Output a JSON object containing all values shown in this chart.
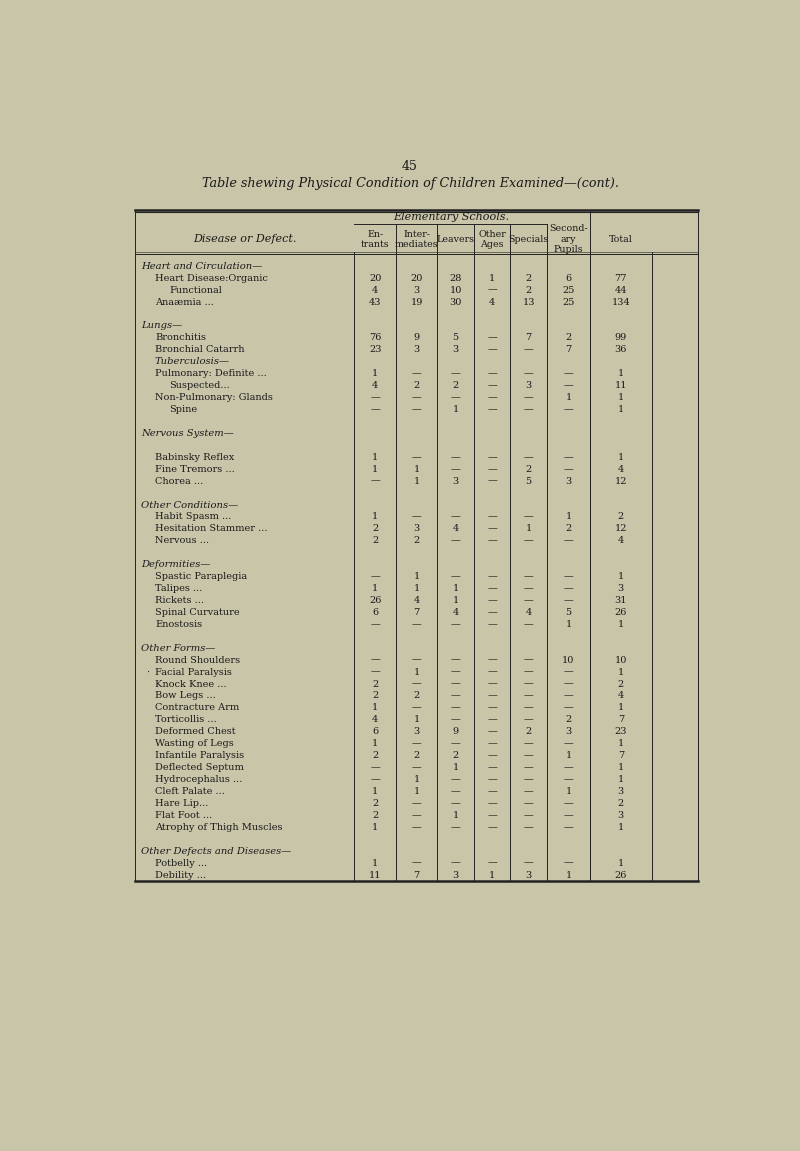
{
  "page_number": "45",
  "title": "Table shewing Physical Condition of Children Examined—(cont).",
  "header_group": "Elementary Schools.",
  "col_headers": [
    "En-\ntrants",
    "Inter-\nmediates",
    "Leavers",
    "Other\nAges",
    "Specials",
    "Second-\nary\nPupils",
    "Total"
  ],
  "disease_label": "Disease or Defect.",
  "bg_color": "#c9c5a9",
  "text_color": "#1a1a1a",
  "rows": [
    {
      "label": "Heart and Circulation—",
      "section": true,
      "indent": 0,
      "vals": [
        "",
        "",
        "",
        "",
        "",
        "",
        ""
      ]
    },
    {
      "label": "Heart Disease:Organic",
      "section": false,
      "indent": 1,
      "dots": "... ...",
      "vals": [
        "20",
        "20",
        "28",
        "1",
        "2",
        "6",
        "77"
      ]
    },
    {
      "label": "Functional",
      "section": false,
      "indent": 2,
      "dots": "... ...",
      "vals": [
        "4",
        "3",
        "10",
        "—",
        "2",
        "25",
        "44"
      ]
    },
    {
      "label": "Anaæmia ...",
      "section": false,
      "indent": 1,
      "dots": "... ... ...",
      "vals": [
        "43",
        "19",
        "30",
        "4",
        "13",
        "25",
        "134"
      ]
    },
    {
      "label": "",
      "section": false,
      "indent": 0,
      "vals": [
        "",
        "",
        "",
        "",
        "",
        "",
        ""
      ]
    },
    {
      "label": "Lungs—",
      "section": true,
      "indent": 0,
      "vals": [
        "",
        "",
        "",
        "",
        "",
        "",
        ""
      ]
    },
    {
      "label": "Bronchitis",
      "section": false,
      "indent": 1,
      "dots": "... ... ... ...",
      "vals": [
        "76",
        "9",
        "5",
        "—",
        "7",
        "2",
        "99"
      ]
    },
    {
      "label": "Bronchial Catarrh",
      "section": false,
      "indent": 1,
      "dots": "... ...",
      "vals": [
        "23",
        "3",
        "3",
        "—",
        "—",
        "7",
        "36"
      ]
    },
    {
      "label": "Tuberculosis—",
      "section": true,
      "indent": 1,
      "vals": [
        "",
        "",
        "",
        "",
        "",
        "",
        ""
      ]
    },
    {
      "label": "Pulmonary: Definite ...",
      "section": false,
      "indent": 1,
      "dots": "... ...",
      "vals": [
        "1",
        "—",
        "—",
        "—",
        "—",
        "—",
        "1"
      ]
    },
    {
      "label": "Suspected...",
      "section": false,
      "indent": 2,
      "dots": "... ...",
      "vals": [
        "4",
        "2",
        "2",
        "—",
        "3",
        "—",
        "11"
      ]
    },
    {
      "label": "Non-Pulmonary: Glands",
      "section": false,
      "indent": 1,
      "dots": "... ...",
      "vals": [
        "—",
        "—",
        "—",
        "—",
        "—",
        "1",
        "1"
      ]
    },
    {
      "label": "Spine",
      "section": false,
      "indent": 2,
      "dots": "... ...",
      "vals": [
        "—",
        "—",
        "1",
        "—",
        "—",
        "—",
        "1"
      ]
    },
    {
      "label": "",
      "section": false,
      "indent": 0,
      "vals": [
        "",
        "",
        "",
        "",
        "",
        "",
        ""
      ]
    },
    {
      "label": "Nervous System—",
      "section": true,
      "indent": 0,
      "vals": [
        "",
        "",
        "",
        "",
        "",
        "",
        ""
      ]
    },
    {
      "label": "",
      "section": false,
      "indent": 0,
      "vals": [
        "",
        "",
        "",
        "",
        "",
        "",
        ""
      ]
    },
    {
      "label": "Babinsky Reflex",
      "section": false,
      "indent": 1,
      "dots": "... ... ...",
      "vals": [
        "1",
        "—",
        "—",
        "—",
        "—",
        "—",
        "1"
      ]
    },
    {
      "label": "Fine Tremors ...",
      "section": false,
      "indent": 1,
      "dots": "... ...",
      "vals": [
        "1",
        "1",
        "—",
        "—",
        "2",
        "—",
        "4"
      ]
    },
    {
      "label": "Chorea ...",
      "section": false,
      "indent": 1,
      "dots": "... ... ...",
      "vals": [
        "—",
        "1",
        "3",
        "—",
        "5",
        "3",
        "12"
      ]
    },
    {
      "label": "",
      "section": false,
      "indent": 0,
      "vals": [
        "",
        "",
        "",
        "",
        "",
        "",
        ""
      ]
    },
    {
      "label": "Other Conditions—",
      "section": true,
      "indent": 0,
      "vals": [
        "",
        "",
        "",
        "",
        "",
        "",
        ""
      ]
    },
    {
      "label": "Habit Spasm ...",
      "section": false,
      "indent": 1,
      "dots": "... ...",
      "vals": [
        "1",
        "—",
        "—",
        "—",
        "—",
        "1",
        "2"
      ]
    },
    {
      "label": "Hesitation Stammer ...",
      "section": false,
      "indent": 1,
      "dots": "...",
      "vals": [
        "2",
        "3",
        "4",
        "—",
        "1",
        "2",
        "12"
      ]
    },
    {
      "label": "Nervous ...",
      "section": false,
      "indent": 1,
      "dots": "... ...",
      "vals": [
        "2",
        "2",
        "—",
        "—",
        "—",
        "—",
        "4"
      ]
    },
    {
      "label": "",
      "section": false,
      "indent": 0,
      "vals": [
        "",
        "",
        "",
        "",
        "",
        "",
        ""
      ]
    },
    {
      "label": "Deformities—",
      "section": true,
      "indent": 0,
      "vals": [
        "",
        "",
        "",
        "",
        "",
        "",
        ""
      ]
    },
    {
      "label": "Spastic Paraplegia",
      "section": false,
      "indent": 1,
      "dots": "... ...",
      "vals": [
        "—",
        "1",
        "—",
        "—",
        "—",
        "—",
        "1"
      ]
    },
    {
      "label": "Talipes ...",
      "section": false,
      "indent": 1,
      "dots": "... ...",
      "vals": [
        "1",
        "1",
        "1",
        "—",
        "—",
        "—",
        "3"
      ]
    },
    {
      "label": "Rickets ...",
      "section": false,
      "indent": 1,
      "dots": "... ...",
      "vals": [
        "26",
        "4",
        "1",
        "—",
        "—",
        "—",
        "31"
      ]
    },
    {
      "label": "Spinal Curvature",
      "section": false,
      "indent": 1,
      "dots": "... ...",
      "vals": [
        "6",
        "7",
        "4",
        "—",
        "4",
        "5",
        "26"
      ]
    },
    {
      "label": "Enostosis",
      "section": false,
      "indent": 1,
      "dots": "... ...",
      "vals": [
        "—",
        "—",
        "—",
        "—",
        "—",
        "1",
        "1"
      ]
    },
    {
      "label": "",
      "section": false,
      "indent": 0,
      "vals": [
        "",
        "",
        "",
        "",
        "",
        "",
        ""
      ]
    },
    {
      "label": "Other Forms—",
      "section": true,
      "indent": 0,
      "vals": [
        "",
        "",
        "",
        "",
        "",
        "",
        ""
      ]
    },
    {
      "label": "Round Shoulders",
      "section": false,
      "indent": 1,
      "dots": "... ...",
      "vals": [
        "—",
        "—",
        "—",
        "—",
        "—",
        "10",
        "10"
      ]
    },
    {
      "label": "Facial Paralysis",
      "section": false,
      "indent": 1,
      "bullet": true,
      "dots": "... ...",
      "vals": [
        "—",
        "1",
        "—",
        "—",
        "—",
        "—",
        "1"
      ]
    },
    {
      "label": "Knock Knee ...",
      "section": false,
      "indent": 1,
      "dots": "... ...",
      "vals": [
        "2",
        "—",
        "—",
        "—",
        "—",
        "—",
        "2"
      ]
    },
    {
      "label": "Bow Legs ...",
      "section": false,
      "indent": 1,
      "dots": "... ...",
      "vals": [
        "2",
        "2",
        "—",
        "—",
        "—",
        "—",
        "4"
      ]
    },
    {
      "label": "Contracture Arm",
      "section": false,
      "indent": 1,
      "dots": "... ...",
      "vals": [
        "1",
        "—",
        "—",
        "—",
        "—",
        "—",
        "1"
      ]
    },
    {
      "label": "Torticollis ...",
      "section": false,
      "indent": 1,
      "dots": "... ...",
      "vals": [
        "4",
        "1",
        "—",
        "—",
        "—",
        "2",
        "7"
      ]
    },
    {
      "label": "Deformed Chest",
      "section": false,
      "indent": 1,
      "dots": "... ...",
      "vals": [
        "6",
        "3",
        "9",
        "—",
        "2",
        "3",
        "23"
      ]
    },
    {
      "label": "Wasting of Legs",
      "section": false,
      "indent": 1,
      "dots": "... ...",
      "vals": [
        "1",
        "—",
        "—",
        "—",
        "—",
        "—",
        "1"
      ]
    },
    {
      "label": "Infantile Paralysis",
      "section": false,
      "indent": 1,
      "dots": "... ...",
      "vals": [
        "2",
        "2",
        "2",
        "—",
        "—",
        "1",
        "7"
      ]
    },
    {
      "label": "Deflected Septum",
      "section": false,
      "indent": 1,
      "dots": "... ...",
      "vals": [
        "—",
        "—",
        "1",
        "—",
        "—",
        "—",
        "1"
      ]
    },
    {
      "label": "Hydrocephalus ...",
      "section": false,
      "indent": 1,
      "dots": "... ...",
      "vals": [
        "—",
        "1",
        "—",
        "—",
        "—",
        "—",
        "1"
      ]
    },
    {
      "label": "Cleft Palate ...",
      "section": false,
      "indent": 1,
      "dots": "... ...",
      "vals": [
        "1",
        "1",
        "—",
        "—",
        "—",
        "1",
        "3"
      ]
    },
    {
      "label": "Hare Lip...",
      "section": false,
      "indent": 1,
      "dots": "... ...",
      "vals": [
        "2",
        "—",
        "—",
        "—",
        "—",
        "—",
        "2"
      ]
    },
    {
      "label": "Flat Foot ...",
      "section": false,
      "indent": 1,
      "dots": "... ...",
      "vals": [
        "2",
        "—",
        "1",
        "—",
        "—",
        "—",
        "3"
      ]
    },
    {
      "label": "Atrophy of Thigh Muscles",
      "section": false,
      "indent": 1,
      "dots": "...",
      "vals": [
        "1",
        "—",
        "—",
        "—",
        "—",
        "—",
        "1"
      ]
    },
    {
      "label": "",
      "section": false,
      "indent": 0,
      "vals": [
        "",
        "",
        "",
        "",
        "",
        "",
        ""
      ]
    },
    {
      "label": "Other Defects and Diseases—",
      "section": true,
      "indent": 0,
      "vals": [
        "",
        "",
        "",
        "",
        "",
        "",
        ""
      ]
    },
    {
      "label": "Potbelly ...",
      "section": false,
      "indent": 1,
      "dots": "... ... ...",
      "vals": [
        "1",
        "—",
        "—",
        "—",
        "—",
        "—",
        "1"
      ]
    },
    {
      "label": "Debility ...",
      "section": false,
      "indent": 1,
      "dots": "... ...",
      "vals": [
        "11",
        "7",
        "3",
        "1",
        "3",
        "1",
        "26"
      ]
    }
  ]
}
